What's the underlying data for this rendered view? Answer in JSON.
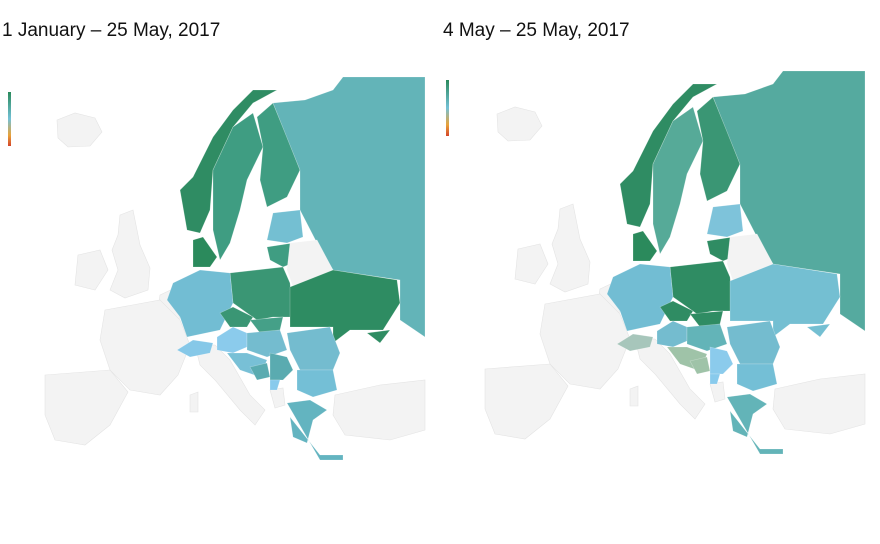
{
  "maps": [
    {
      "title": "1 January – 25 May, 2017",
      "colors": {
        "norway": "#2f8c63",
        "sweden": "#3f9d82",
        "finland": "#3f9d82",
        "russia": "#63b4b8",
        "baltics": "#74bfd2",
        "lithuania": "#3f9d82",
        "belarus": "#f3f3f3",
        "denmark": "#2b8a5c",
        "poland": "#3a9674",
        "ukraine": "#2e8c62",
        "crimea": "#2e8c62",
        "germany": "#72bdd3",
        "czech": "#3a9674",
        "slovakia": "#45a088",
        "austria": "#8bcbec",
        "switzerland": "#86c8e8",
        "hungary": "#74bccf",
        "romania": "#74bccf",
        "croatia": "#78c0d6",
        "bosnia": "#5aabb0",
        "serbia": "#5aabb0",
        "montenegro": "#88caec",
        "bulgaria": "#74bfd6",
        "greece": "#63b4c0"
      }
    },
    {
      "title": "4 May – 25 May, 2017",
      "colors": {
        "norway": "#2f8c63",
        "sweden": "#56aa98",
        "finland": "#3a9674",
        "russia": "#55aa9f",
        "baltics": "#7ec3da",
        "lithuania": "#2f8c63",
        "belarus": "#f3f3f3",
        "denmark": "#2b8a5c",
        "poland": "#2f8c63",
        "ukraine": "#74bfd2",
        "crimea": "#74bfd2",
        "germany": "#72bdd3",
        "czech": "#2f8c63",
        "slovakia": "#2f8c63",
        "austria": "#74bccf",
        "switzerland": "#a7c6bb",
        "hungary": "#63b4b8",
        "romania": "#74bccf",
        "croatia": "#9fc3a8",
        "bosnia": "#9fc3a8",
        "serbia": "#8bcbec",
        "montenegro": "#88caec",
        "bulgaria": "#74bfd6",
        "greece": "#63b4b8"
      }
    }
  ],
  "legend": {
    "top_color": "#2b8a5c",
    "mid_color": "#74c1d6",
    "low_color": "#e8a33a",
    "bottom_color": "#d4452a"
  },
  "no_data_color": "#f3f3f3"
}
